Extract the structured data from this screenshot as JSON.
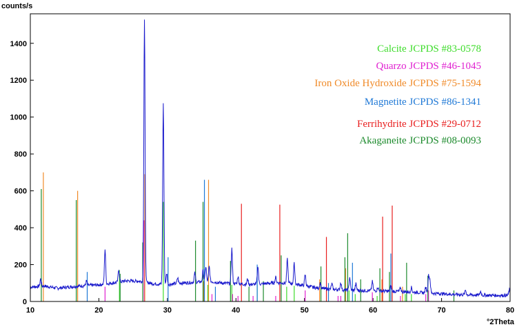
{
  "chart_data": {
    "type": "line",
    "title": "",
    "ylabel": "counts/s",
    "xlabel": "°2Theta",
    "xlim": [
      10,
      80
    ],
    "ylim": [
      0,
      1560
    ],
    "x_ticks": [
      10,
      20,
      30,
      40,
      50,
      60,
      70,
      80
    ],
    "y_ticks": [
      0,
      200,
      400,
      600,
      800,
      1000,
      1200,
      1400
    ],
    "pattern_color": "#1a1acc",
    "pattern": {
      "baseline": [
        [
          10,
          78
        ],
        [
          12,
          84
        ],
        [
          14,
          72
        ],
        [
          16,
          80
        ],
        [
          18,
          86
        ],
        [
          20,
          90
        ],
        [
          22,
          100
        ],
        [
          24,
          112
        ],
        [
          26,
          110
        ],
        [
          28,
          96
        ],
        [
          30,
          92
        ],
        [
          32,
          100
        ],
        [
          34,
          104
        ],
        [
          36,
          110
        ],
        [
          38,
          100
        ],
        [
          40,
          96
        ],
        [
          42,
          92
        ],
        [
          44,
          96
        ],
        [
          46,
          102
        ],
        [
          48,
          98
        ],
        [
          50,
          86
        ],
        [
          52,
          72
        ],
        [
          54,
          66
        ],
        [
          56,
          62
        ],
        [
          58,
          60
        ],
        [
          60,
          58
        ],
        [
          62,
          56
        ],
        [
          64,
          54
        ],
        [
          66,
          50
        ],
        [
          68,
          46
        ],
        [
          70,
          42
        ],
        [
          72,
          38
        ],
        [
          74,
          36
        ],
        [
          76,
          34
        ],
        [
          78,
          33
        ],
        [
          80,
          33
        ]
      ],
      "peaks": [
        [
          11.5,
          40
        ],
        [
          18.2,
          25
        ],
        [
          20.9,
          190
        ],
        [
          22.9,
          70
        ],
        [
          26.65,
          1420
        ],
        [
          29.4,
          980
        ],
        [
          29.9,
          60
        ],
        [
          31.5,
          30
        ],
        [
          34.0,
          50
        ],
        [
          35.2,
          60
        ],
        [
          35.6,
          80
        ],
        [
          36.1,
          80
        ],
        [
          39.4,
          190
        ],
        [
          40.3,
          40
        ],
        [
          41.7,
          30
        ],
        [
          43.2,
          100
        ],
        [
          45.8,
          30
        ],
        [
          47.5,
          130
        ],
        [
          48.5,
          110
        ],
        [
          50.1,
          60
        ],
        [
          52.3,
          30
        ],
        [
          54.0,
          30
        ],
        [
          55.3,
          40
        ],
        [
          56.6,
          70
        ],
        [
          57.5,
          35
        ],
        [
          59.9,
          50
        ],
        [
          60.7,
          20
        ],
        [
          62.6,
          30
        ],
        [
          64.0,
          20
        ],
        [
          65.6,
          25
        ],
        [
          67.7,
          30
        ],
        [
          68.1,
          90
        ],
        [
          68.3,
          70
        ],
        [
          73.5,
          25
        ],
        [
          75.7,
          20
        ],
        [
          79.9,
          30
        ]
      ]
    },
    "references": [
      {
        "name": "Calcite JCPDS #83-0578",
        "color": "#3ddc2a",
        "lines": [
          [
            23.0,
            170
          ],
          [
            29.4,
            540
          ],
          [
            35.9,
            90
          ],
          [
            39.4,
            90
          ],
          [
            43.1,
            90
          ],
          [
            47.4,
            80
          ],
          [
            48.5,
            85
          ],
          [
            56.5,
            60
          ],
          [
            57.4,
            40
          ],
          [
            60.6,
            30
          ],
          [
            64.7,
            40
          ],
          [
            65.6,
            40
          ]
        ]
      },
      {
        "name": "Quarzo JCPDS #46-1045",
        "color": "#e020d0",
        "lines": [
          [
            20.9,
            80
          ],
          [
            26.6,
            440
          ],
          [
            36.5,
            40
          ],
          [
            39.5,
            40
          ],
          [
            40.3,
            30
          ],
          [
            42.5,
            30
          ],
          [
            45.8,
            30
          ],
          [
            50.1,
            60
          ],
          [
            54.9,
            30
          ],
          [
            55.3,
            30
          ],
          [
            59.9,
            50
          ],
          [
            64.0,
            30
          ],
          [
            67.7,
            40
          ],
          [
            68.1,
            60
          ]
        ]
      },
      {
        "name": "Iron Oxide Hydroxide JCPDS #75-1594",
        "color": "#f08a28",
        "lines": [
          [
            11.9,
            700
          ],
          [
            16.9,
            600
          ],
          [
            26.7,
            690
          ],
          [
            35.3,
            110
          ],
          [
            36.0,
            660
          ],
          [
            52.2,
            120
          ],
          [
            56.0,
            180
          ],
          [
            61.3,
            120
          ],
          [
            64.3,
            80
          ]
        ]
      },
      {
        "name": "Magnetite JCPDS #86-1341",
        "color": "#1e78d6",
        "lines": [
          [
            18.3,
            160
          ],
          [
            30.1,
            240
          ],
          [
            35.4,
            660
          ],
          [
            37.0,
            80
          ],
          [
            43.1,
            200
          ],
          [
            53.5,
            100
          ],
          [
            57.0,
            210
          ],
          [
            62.6,
            260
          ]
        ]
      },
      {
        "name": "Ferrihydrite JCPDS #29-0712",
        "color": "#e81e1e",
        "lines": [
          [
            40.8,
            530
          ],
          [
            46.4,
            525
          ],
          [
            53.2,
            350
          ],
          [
            61.4,
            460
          ],
          [
            62.8,
            520
          ]
        ]
      },
      {
        "name": "Akaganeite JCPDS #08-0093",
        "color": "#1c8a2c",
        "lines": [
          [
            11.6,
            610
          ],
          [
            16.7,
            550
          ],
          [
            23.1,
            150
          ],
          [
            26.4,
            320
          ],
          [
            34.1,
            330
          ],
          [
            35.2,
            540
          ],
          [
            39.2,
            220
          ],
          [
            41.9,
            80
          ],
          [
            44.0,
            110
          ],
          [
            46.6,
            250
          ],
          [
            52.4,
            190
          ],
          [
            55.9,
            240
          ],
          [
            56.3,
            370
          ],
          [
            58.2,
            120
          ],
          [
            61.0,
            180
          ],
          [
            62.4,
            160
          ],
          [
            64.9,
            210
          ],
          [
            68.0,
            140
          ],
          [
            71.8,
            60
          ]
        ]
      }
    ],
    "legend_placement": "top-right",
    "grid": false
  }
}
